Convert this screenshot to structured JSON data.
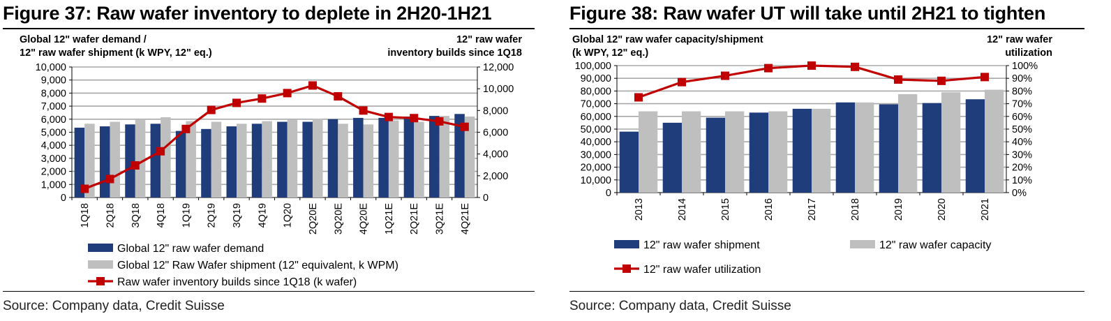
{
  "figure37": {
    "title": "Figure 37: Raw wafer inventory to deplete in 2H20-1H21",
    "left_axis_label_line1": "Global 12\" wafer demand /",
    "left_axis_label_line2": "12\" raw wafer shipment (k WPY, 12\" eq.)",
    "right_axis_label_line1": "12\" raw wafer",
    "right_axis_label_line2": "inventory builds since 1Q18",
    "source": "Source: Company data, Credit Suisse"
  },
  "figure38": {
    "title": "Figure 38: Raw wafer UT will take until 2H21 to tighten",
    "left_axis_label_line1": "Global 12\" raw wafer capacity/shipment",
    "left_axis_label_line2": "(k WPY, 12\" eq.)",
    "right_axis_label_line1": "12\" raw wafer",
    "right_axis_label_line2": "utilization",
    "source": "Source: Company data, Credit Suisse"
  },
  "chart_data": [
    {
      "type": "bar",
      "combo": "bar+line",
      "title": "Figure 37: Raw wafer inventory to deplete in 2H20-1H21",
      "categories": [
        "1Q18",
        "2Q18",
        "3Q18",
        "4Q18",
        "1Q19",
        "2Q19",
        "3Q19",
        "4Q19",
        "1Q20",
        "2Q20E",
        "3Q20E",
        "4Q20E",
        "1Q21E",
        "2Q21E",
        "3Q21E",
        "4Q21E"
      ],
      "series": [
        {
          "name": "Global 12\" raw wafer demand",
          "type": "bar",
          "axis": "left",
          "color": "#1F3D7A",
          "values": [
            5350,
            5450,
            5600,
            5650,
            5100,
            5250,
            5450,
            5650,
            5800,
            5800,
            6000,
            6100,
            6100,
            6200,
            6250,
            6400
          ]
        },
        {
          "name": "Global 12\" Raw Wafer shipment (12\" equivalent, k WPM)",
          "type": "bar",
          "axis": "left",
          "color": "#BFBFBF",
          "values": [
            5650,
            5800,
            6000,
            6150,
            5850,
            5800,
            5650,
            5850,
            5950,
            6050,
            5650,
            5600,
            5900,
            5800,
            6250,
            6200
          ]
        },
        {
          "name": "Raw wafer inventory builds since 1Q18 (k wafer)",
          "type": "line",
          "axis": "right",
          "color": "#C00000",
          "values": [
            800,
            1700,
            2950,
            4250,
            6300,
            8050,
            8700,
            9100,
            9600,
            10300,
            9300,
            8000,
            7400,
            7300,
            7000,
            6500
          ]
        }
      ],
      "ylim_left": [
        0,
        10000
      ],
      "ylim_right": [
        0,
        12000
      ],
      "yticks_left": [
        "0",
        "1,000",
        "2,000",
        "3,000",
        "4,000",
        "5,000",
        "6,000",
        "7,000",
        "8,000",
        "9,000",
        "10,000"
      ],
      "yticks_right": [
        "0",
        "2,000",
        "4,000",
        "6,000",
        "8,000",
        "10,000",
        "12,000"
      ],
      "grid": true,
      "legend": "bottom"
    },
    {
      "type": "bar",
      "combo": "bar+line",
      "title": "Figure 38: Raw wafer UT will take until 2H21 to tighten",
      "categories": [
        "2013",
        "2014",
        "2015",
        "2016",
        "2017",
        "2018",
        "2019",
        "2020",
        "2021"
      ],
      "series": [
        {
          "name": "12\" raw wafer shipment",
          "type": "bar",
          "axis": "left",
          "color": "#1F3D7A",
          "values": [
            48000,
            55000,
            59000,
            63000,
            66000,
            71000,
            69500,
            70500,
            73500
          ]
        },
        {
          "name": "12\" raw wafer capacity",
          "type": "bar",
          "axis": "left",
          "color": "#BFBFBF",
          "values": [
            64000,
            64000,
            64000,
            64000,
            66000,
            71000,
            77500,
            79000,
            81000
          ]
        },
        {
          "name": "12\" raw wafer utilization",
          "type": "line",
          "axis": "right",
          "color": "#C00000",
          "values": [
            75,
            87,
            92,
            98,
            100,
            99,
            89,
            88,
            91
          ]
        }
      ],
      "ylim_left": [
        0,
        100000
      ],
      "ylim_right": [
        0,
        100
      ],
      "yticks_left": [
        "0",
        "10,000",
        "20,000",
        "30,000",
        "40,000",
        "50,000",
        "60,000",
        "70,000",
        "80,000",
        "90,000",
        "100,000"
      ],
      "yticks_right": [
        "0%",
        "10%",
        "20%",
        "30%",
        "40%",
        "50%",
        "60%",
        "70%",
        "80%",
        "90%",
        "100%"
      ],
      "grid": true,
      "legend": "bottom"
    }
  ]
}
